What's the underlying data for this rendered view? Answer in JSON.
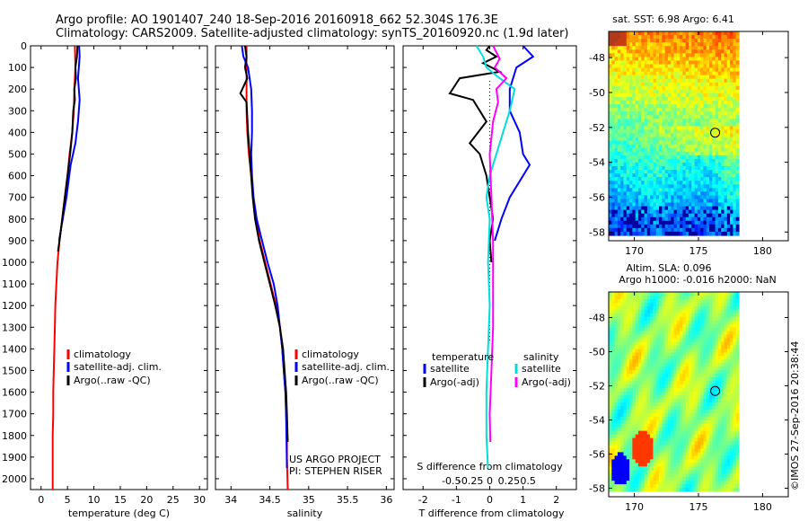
{
  "title": {
    "line1": "Argo profile: AO 1901407_240 18-Sep-2016 20160918_662 52.304S 176.3E",
    "line2": "Climatology: CARS2009. Satellite-adjusted climatology: synTS_20160920.nc (1.9d later)"
  },
  "chart_data": [
    {
      "type": "line",
      "panel": "temperature",
      "xlabel": "temperature (deg C)",
      "xlim": [
        -2,
        31.5
      ],
      "xticks": [
        0,
        5,
        10,
        15,
        20,
        25,
        30
      ],
      "ylim": [
        0,
        2050
      ],
      "yticks": [
        0,
        100,
        200,
        300,
        400,
        500,
        600,
        700,
        800,
        900,
        1000,
        1100,
        1200,
        1300,
        1400,
        1500,
        1600,
        1700,
        1800,
        1900,
        2000
      ],
      "y_reversed": true,
      "legend": [
        "climatology",
        "satellite-adj. clim.",
        "Argo(..raw -QC)"
      ],
      "series": [
        {
          "name": "climatology",
          "color": "#ff0000",
          "x": [
            6.4,
            6.5,
            6.3,
            6.2,
            5.9,
            5.4,
            5.0,
            4.5,
            4.0,
            3.5,
            3.1,
            2.9,
            2.7,
            2.6,
            2.5,
            2.4,
            2.3,
            2.3,
            2.2,
            2.2,
            2.2
          ],
          "y": [
            0,
            100,
            200,
            300,
            400,
            500,
            600,
            700,
            800,
            900,
            1000,
            1100,
            1200,
            1300,
            1400,
            1500,
            1600,
            1700,
            1800,
            1900,
            2050
          ]
        },
        {
          "name": "satellite-adj. clim.",
          "color": "#0000ff",
          "x": [
            7.2,
            7.3,
            7.0,
            7.3,
            7.0,
            6.5,
            5.6,
            4.8,
            4.1,
            3.4
          ],
          "y": [
            0,
            50,
            150,
            250,
            350,
            450,
            550,
            700,
            800,
            900
          ]
        },
        {
          "name": "Argo(..raw -QC)",
          "color": "#000000",
          "x": [
            6.9,
            6.8,
            6.5,
            6.6,
            6.3,
            6.4,
            6.1,
            5.9,
            5.5,
            5.0,
            4.5,
            4.0,
            3.5,
            3.2
          ],
          "y": [
            0,
            50,
            100,
            150,
            200,
            250,
            300,
            400,
            500,
            600,
            700,
            800,
            900,
            950
          ]
        }
      ]
    },
    {
      "type": "line",
      "panel": "salinity",
      "xlabel": "salinity",
      "xlim": [
        33.8,
        36.1
      ],
      "xticks": [
        34,
        34.5,
        35,
        35.5,
        36
      ],
      "ylim": [
        0,
        2050
      ],
      "y_reversed": true,
      "legend": [
        "climatology",
        "satellite-adj. clim.",
        "Argo(..raw -QC)"
      ],
      "series": [
        {
          "name": "climatology",
          "color": "#ff0000",
          "x": [
            34.2,
            34.2,
            34.2,
            34.2,
            34.21,
            34.23,
            34.26,
            34.29,
            34.32,
            34.37,
            34.44,
            34.51,
            34.58,
            34.63,
            34.66,
            34.68,
            34.7,
            34.71,
            34.72,
            34.72,
            34.73
          ],
          "y": [
            0,
            100,
            200,
            300,
            400,
            500,
            600,
            700,
            800,
            900,
            1000,
            1100,
            1200,
            1300,
            1400,
            1500,
            1600,
            1700,
            1800,
            1900,
            2050
          ]
        },
        {
          "name": "satellite-adj. clim.",
          "color": "#0000ff",
          "x": [
            34.14,
            34.16,
            34.22,
            34.26,
            34.27,
            34.27,
            34.26,
            34.27,
            34.29,
            34.33,
            34.4,
            34.47,
            34.55,
            34.6,
            34.63,
            34.66,
            34.68,
            34.7,
            34.71,
            34.72
          ],
          "y": [
            0,
            50,
            100,
            200,
            300,
            400,
            500,
            600,
            700,
            800,
            900,
            1000,
            1100,
            1200,
            1300,
            1400,
            1500,
            1600,
            1700,
            1950
          ]
        },
        {
          "name": "Argo(..raw -QC)",
          "color": "#000000",
          "x": [
            34.18,
            34.2,
            34.18,
            34.21,
            34.12,
            34.2,
            34.22,
            34.24,
            34.26,
            34.28,
            34.31,
            34.36,
            34.43,
            34.5,
            34.57,
            34.63,
            34.67,
            34.69,
            34.71,
            34.72,
            34.73
          ],
          "y": [
            0,
            50,
            100,
            150,
            220,
            260,
            400,
            500,
            600,
            700,
            800,
            900,
            1000,
            1100,
            1200,
            1300,
            1400,
            1500,
            1600,
            1700,
            1830
          ]
        }
      ]
    },
    {
      "type": "line",
      "panel": "difference",
      "xlabel": "T difference from climatology",
      "xlabel_top": "S difference from climatology",
      "xlim": [
        -2.6,
        2.6
      ],
      "xticks": [
        -2,
        -1,
        0,
        1,
        2
      ],
      "s_xticks_labels": [
        "-0.5",
        "-0.25",
        "0",
        "0.25",
        "0.5"
      ],
      "s_xticks_values": [
        -0.5,
        -0.25,
        0,
        0.25,
        0.5
      ],
      "ylim": [
        0,
        2050
      ],
      "y_reversed": true,
      "legend_headers": [
        "temperature",
        "salinity"
      ],
      "legend": [
        "satellite",
        "Argo(-adj)",
        "satellite",
        "Argo(-adj)"
      ],
      "series": [
        {
          "name": "satellite",
          "group": "temperature",
          "color": "#0000ff",
          "x": [
            1.0,
            1.3,
            0.8,
            0.6,
            0.6,
            0.9,
            1.0,
            1.2,
            1.0,
            0.6,
            0.35,
            0.15
          ],
          "y": [
            0,
            50,
            100,
            200,
            300,
            400,
            500,
            550,
            600,
            700,
            800,
            900
          ]
        },
        {
          "name": "Argo(-adj)",
          "group": "temperature",
          "color": "#000000",
          "x": [
            0.0,
            -0.1,
            0.2,
            -0.2,
            0.3,
            -0.9,
            -1.2,
            -0.5,
            -0.3,
            -0.1,
            -0.35,
            -0.6,
            -0.3,
            -0.1,
            0.0,
            0.1,
            0.0,
            0.05
          ],
          "y": [
            0,
            20,
            50,
            80,
            120,
            150,
            220,
            250,
            300,
            350,
            400,
            450,
            500,
            600,
            700,
            800,
            900,
            1000
          ]
        },
        {
          "name": "satellite",
          "group": "salinity",
          "color": "#00dddd",
          "x": [
            -0.4,
            -0.2,
            -0.1,
            0.3,
            0.75,
            0.6,
            0.3,
            0.0,
            -0.1,
            0.0,
            -0.05,
            0.0,
            -0.05,
            -0.1,
            -0.1,
            -0.05
          ],
          "y": [
            0,
            50,
            100,
            150,
            200,
            300,
            450,
            600,
            700,
            800,
            1000,
            1200,
            1400,
            1600,
            1800,
            1950
          ]
        },
        {
          "name": "Argo(-adj)",
          "group": "salinity",
          "color": "#ff00ff",
          "x": [
            0.1,
            0.2,
            0.3,
            0.15,
            0.5,
            0.2,
            0.25,
            0.1,
            0.0,
            0.05,
            0.1,
            0.1,
            0.1,
            0.05,
            0.0,
            0.02
          ],
          "y": [
            0,
            30,
            60,
            100,
            150,
            200,
            260,
            350,
            500,
            700,
            900,
            1100,
            1300,
            1500,
            1700,
            1830
          ]
        }
      ]
    },
    {
      "type": "heatmap",
      "panel": "sst-map",
      "title": "sat. SST: 6.98 Argo: 6.41",
      "xlim": [
        168,
        182
      ],
      "ylim": [
        -58.5,
        -46.5
      ],
      "xticks": [
        170,
        175,
        180
      ],
      "yticks": [
        -48,
        -50,
        -52,
        -54,
        -56,
        -58
      ],
      "marker": {
        "lon": 176.3,
        "lat": -52.304
      }
    },
    {
      "type": "heatmap",
      "panel": "sla-map",
      "title": "Altim. SLA: 0.096",
      "subtitle": "Argo h1000: -0.016 h2000: NaN",
      "xlim": [
        168,
        182
      ],
      "ylim": [
        -58.5,
        -46.5
      ],
      "xticks": [
        170,
        175,
        180
      ],
      "yticks": [
        -48,
        -50,
        -52,
        -54,
        -56,
        -58
      ],
      "marker": {
        "lon": 176.3,
        "lat": -52.304
      }
    }
  ],
  "annotations": {
    "project": "US ARGO PROJECT",
    "pi": "PI: STEPHEN RISER",
    "imos": "©IMOS 27-Sep-2016 20:38:44"
  }
}
